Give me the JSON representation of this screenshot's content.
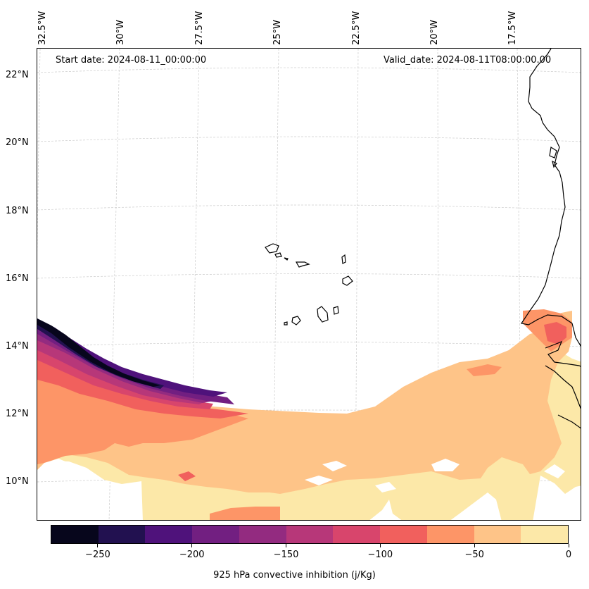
{
  "annotations": {
    "start_date": "Start date: 2024-08-11_00:00:00",
    "valid_date": "Valid_date: 2024-08-11T08:00:00.00"
  },
  "latitude_labels": [
    "22°N",
    "20°N",
    "18°N",
    "16°N",
    "14°N",
    "12°N",
    "10°N"
  ],
  "longitude_labels": [
    "32.5°W",
    "30°W",
    "27.5°W",
    "25°W",
    "22.5°W",
    "20°W",
    "17.5°W"
  ],
  "colorbar": {
    "label": "925 hPa convective inhibition (j/Kg)",
    "tick_labels": [
      "−250",
      "−200",
      "−150",
      "−100",
      "−50",
      "0"
    ],
    "tick_values": [
      -250,
      -200,
      -150,
      -100,
      -50,
      0
    ],
    "range": [
      -275,
      0
    ],
    "levels": [
      -275,
      -250,
      -225,
      -200,
      -175,
      -150,
      -125,
      -100,
      -75,
      -50,
      -25,
      0
    ],
    "colors": [
      "#07061c",
      "#221150",
      "#4f127b",
      "#721f81",
      "#932b80",
      "#b73779",
      "#d8456c",
      "#f1605d",
      "#fd9567",
      "#fec488",
      "#fce8a8"
    ]
  },
  "colors": {
    "coastline": "#000000",
    "gridline": "#cccccc"
  }
}
